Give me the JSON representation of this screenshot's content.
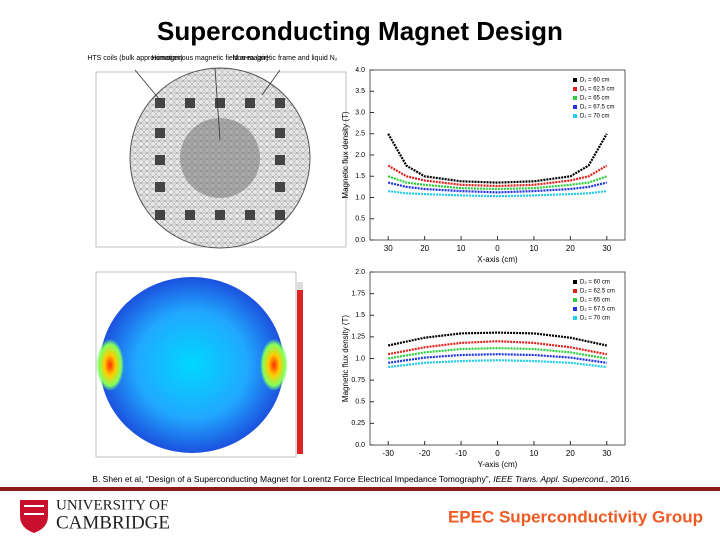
{
  "title": "Superconducting Magnet Design",
  "mesh_labels": [
    "HTS coils (bulk approximation)",
    "Homogenous magnetic field area (air)",
    "Non-magnetic frame and liquid N₂"
  ],
  "charts": [
    {
      "type": "line",
      "xlabel": "X-axis (cm)",
      "ylabel": "Magnetic flux density (T)",
      "x": [
        -30,
        -25,
        -20,
        -10,
        0,
        10,
        20,
        25,
        30
      ],
      "xlim": [
        -35,
        35
      ],
      "ylim": [
        0,
        4
      ],
      "xticks": [
        {
          "value": -30,
          "label": "30"
        },
        {
          "value": -20,
          "label": "20"
        },
        {
          "value": -10,
          "label": "10"
        },
        0,
        10,
        20,
        30
      ],
      "yticks": [
        {
          "value": 0,
          "label": "0.0"
        },
        0.5,
        {
          "value": 1,
          "label": "1.0"
        },
        1.5,
        {
          "value": 2,
          "label": "2.0"
        },
        2.5,
        {
          "value": 3,
          "label": "3.0"
        },
        3.5,
        {
          "value": 4,
          "label": "4.0"
        }
      ],
      "legend": "upper right",
      "series": [
        {
          "name": "D₁ = 60 cm",
          "color": "#000000",
          "values": [
            2.5,
            1.75,
            1.5,
            1.38,
            1.35,
            1.38,
            1.5,
            1.75,
            2.5
          ]
        },
        {
          "name": "D₁ = 62.5 cm",
          "color": "#e0201c",
          "values": [
            1.75,
            1.5,
            1.4,
            1.3,
            1.27,
            1.3,
            1.4,
            1.5,
            1.75
          ]
        },
        {
          "name": "D₁ = 65 cm",
          "color": "#2ecc40",
          "values": [
            1.5,
            1.35,
            1.3,
            1.22,
            1.2,
            1.22,
            1.3,
            1.35,
            1.5
          ]
        },
        {
          "name": "D₁ = 67.5 cm",
          "color": "#2233dd",
          "values": [
            1.35,
            1.25,
            1.2,
            1.15,
            1.12,
            1.15,
            1.2,
            1.25,
            1.35
          ]
        },
        {
          "name": "D₁ = 70 cm",
          "color": "#22ccee",
          "values": [
            1.15,
            1.1,
            1.08,
            1.05,
            1.03,
            1.05,
            1.08,
            1.1,
            1.15
          ]
        }
      ]
    },
    {
      "type": "line",
      "xlabel": "Y-axis (cm)",
      "ylabel": "Magnetic flux density (T)",
      "x": [
        -30,
        -20,
        -10,
        0,
        10,
        20,
        30
      ],
      "xlim": [
        -35,
        35
      ],
      "ylim": [
        0,
        2
      ],
      "xticks": [
        -30,
        -20,
        -10,
        0,
        10,
        20,
        30
      ],
      "yticks": [
        {
          "value": 0,
          "label": "0.0"
        },
        0.25,
        0.5,
        0.75,
        {
          "value": 1,
          "label": "1.0"
        },
        1.25,
        1.5,
        1.75,
        {
          "value": 2,
          "label": "2.0"
        }
      ],
      "legend": "upper right",
      "series": [
        {
          "name": "D₂ = 60 cm",
          "color": "#000000",
          "values": [
            1.15,
            1.24,
            1.29,
            1.3,
            1.29,
            1.24,
            1.15
          ]
        },
        {
          "name": "D₂ = 62.5 cm",
          "color": "#e0201c",
          "values": [
            1.05,
            1.13,
            1.18,
            1.2,
            1.18,
            1.13,
            1.05
          ]
        },
        {
          "name": "D₂ = 65 cm",
          "color": "#2ecc40",
          "values": [
            1.0,
            1.07,
            1.11,
            1.12,
            1.11,
            1.07,
            1.0
          ]
        },
        {
          "name": "D₂ = 67.5 cm",
          "color": "#2233dd",
          "values": [
            0.95,
            1.01,
            1.04,
            1.05,
            1.04,
            1.01,
            0.95
          ]
        },
        {
          "name": "D₂ = 70 cm",
          "color": "#22ccee",
          "values": [
            0.9,
            0.95,
            0.97,
            0.98,
            0.97,
            0.95,
            0.9
          ]
        }
      ]
    }
  ],
  "citation": {
    "authors": "B. Shen et al, “Design of a Superconducting Magnet for Lorentz Force Electrical Impedance Tomography”, ",
    "journal": "IEEE Trans. Appl. Supercond.",
    "year": ", 2016."
  },
  "footer": {
    "university_line1": "UNIVERSITY OF",
    "university_line2": "CAMBRIDGE",
    "group": "EPEC Superconductivity Group"
  }
}
